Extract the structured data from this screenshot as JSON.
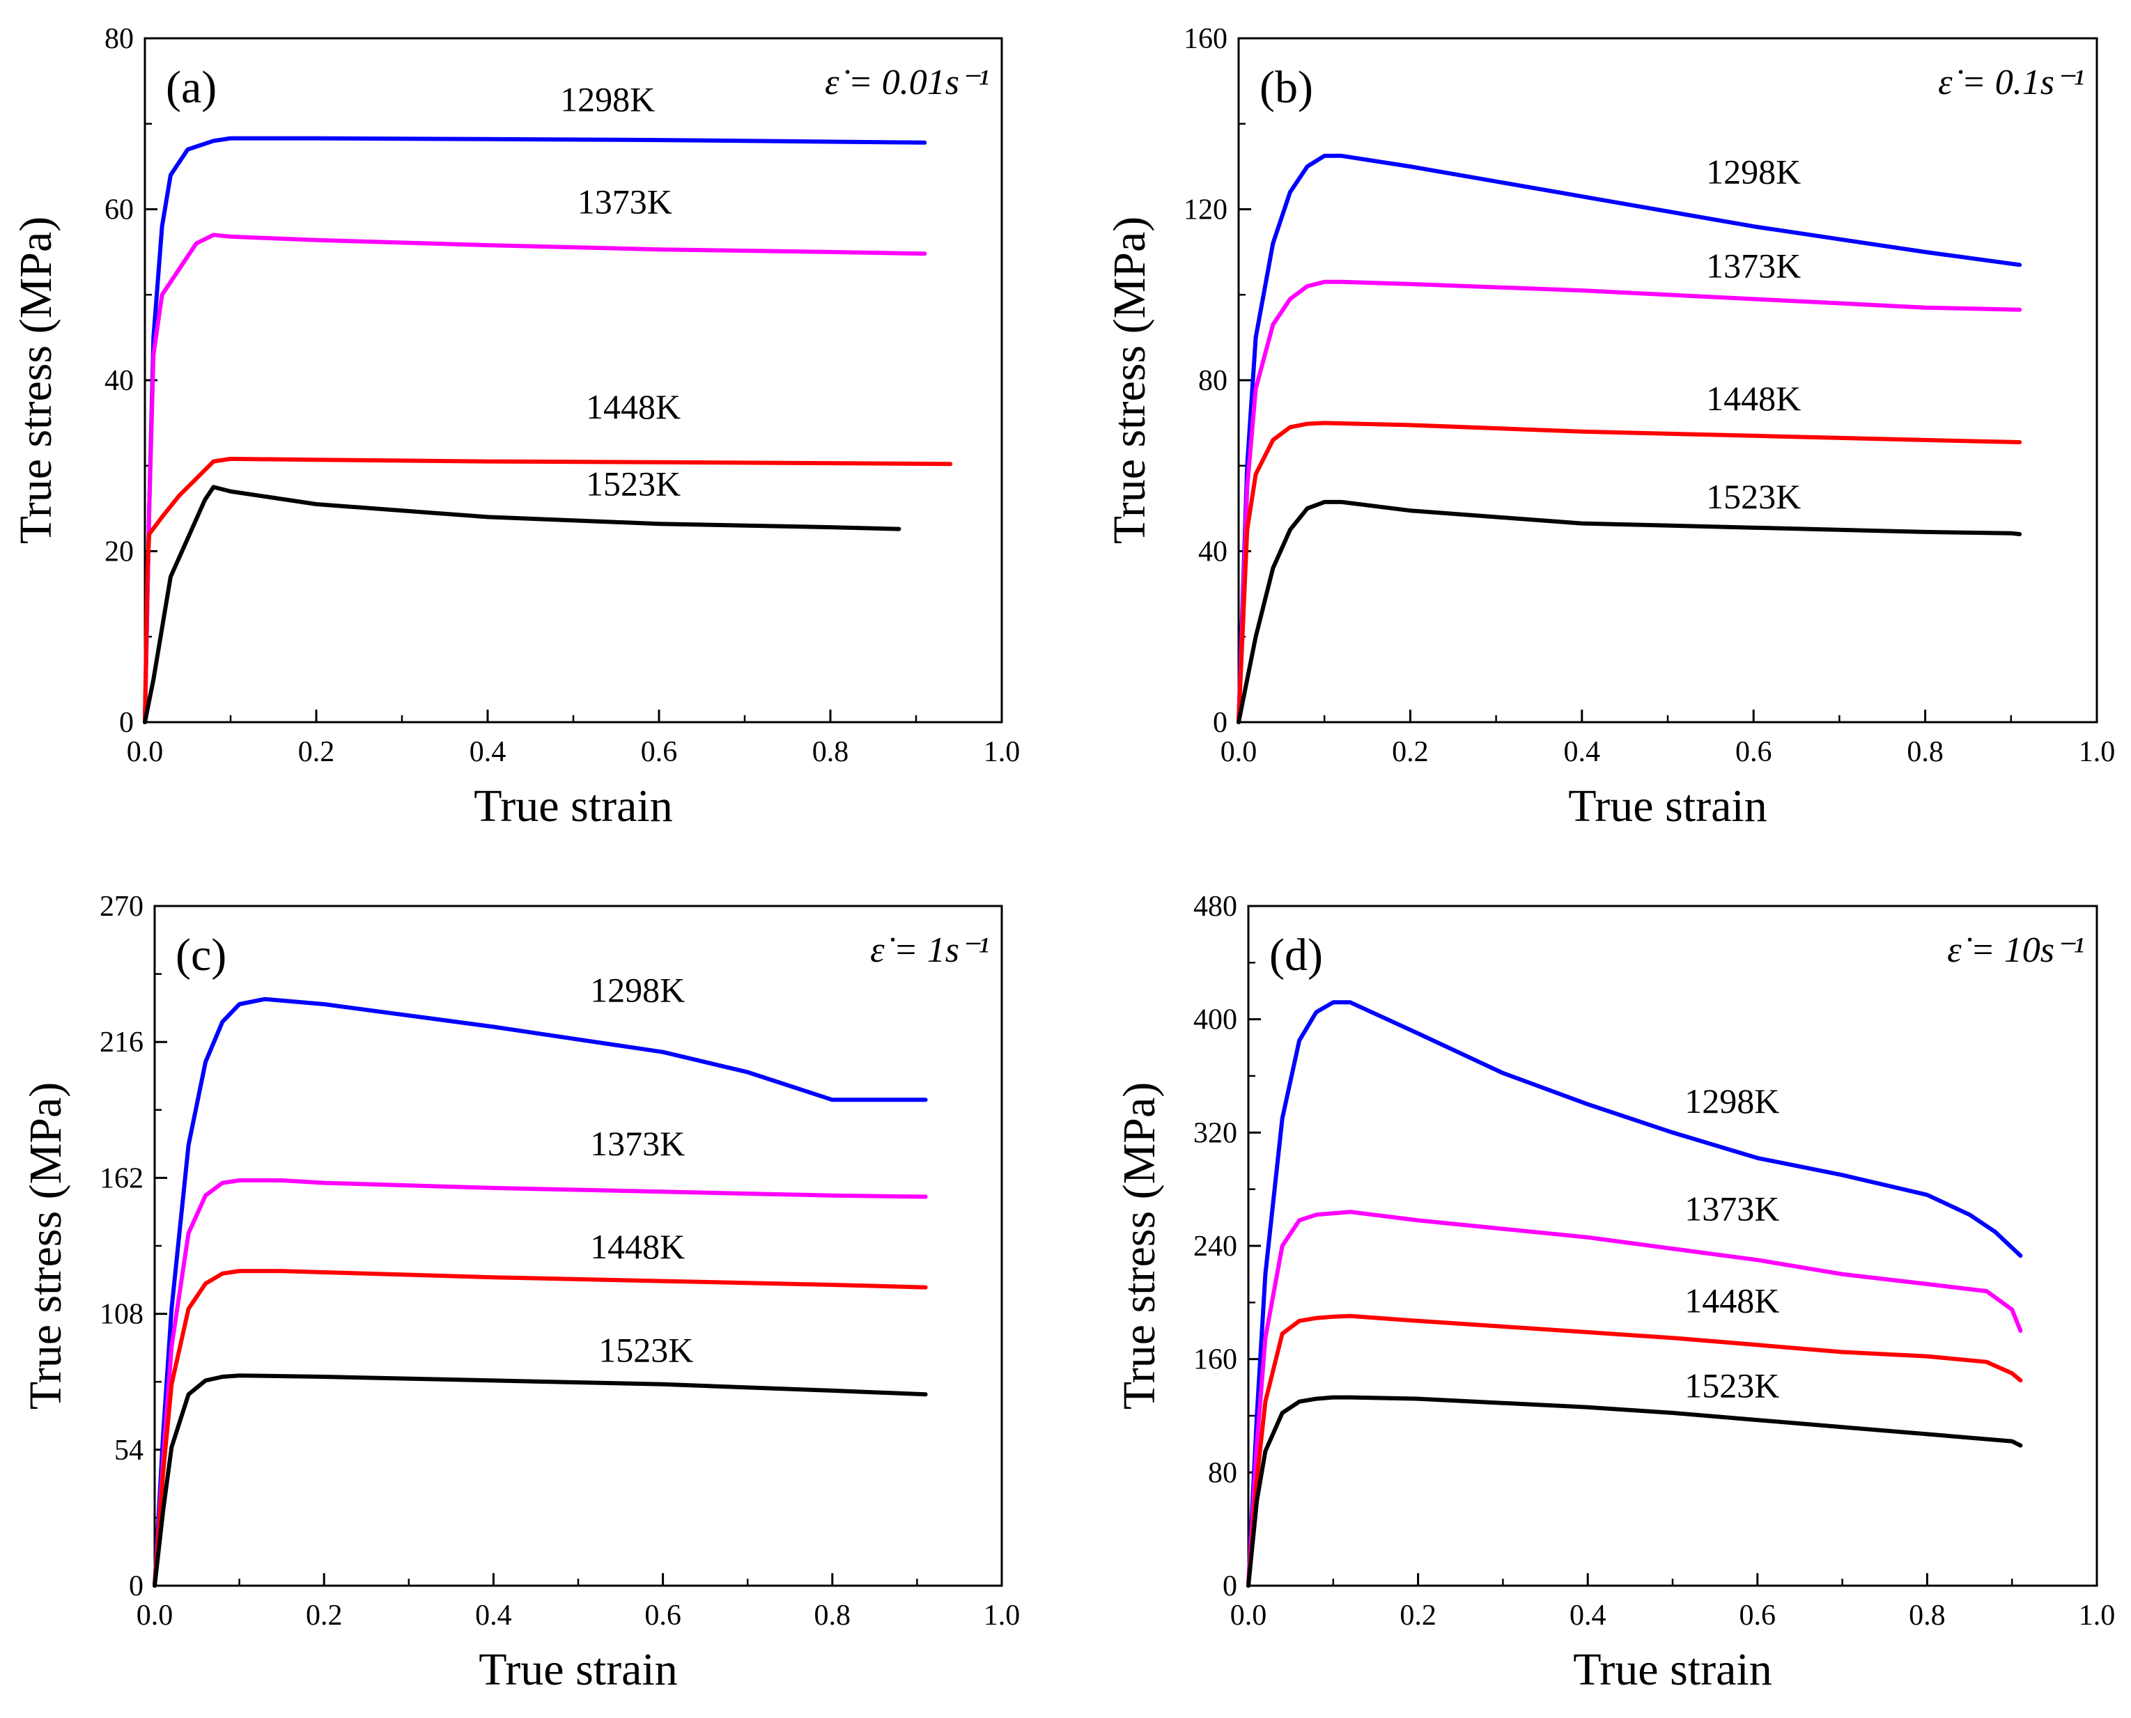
{
  "colors": {
    "1298K": "#0000ff",
    "1373K": "#ff00ff",
    "1448K": "#ff0000",
    "1523K": "#000000"
  },
  "chart_data": [
    {
      "type": "line",
      "panel_label": "(a)",
      "rate_label": "ε̇ = 0.01s⁻¹",
      "xlabel": "True strain",
      "ylabel": "True stress (MPa)",
      "xlim": [
        0,
        1.0
      ],
      "ylim": [
        0,
        80
      ],
      "xticks": [
        0.0,
        0.2,
        0.4,
        0.6,
        0.8,
        1.0
      ],
      "yticks": [
        0,
        20,
        40,
        60,
        80
      ],
      "xtick_labels": [
        "0.0",
        "0.2",
        "0.4",
        "0.6",
        "0.8",
        "1.0"
      ],
      "ytick_labels": [
        "0",
        "20",
        "40",
        "60",
        "80"
      ],
      "series": [
        {
          "name": "1298K",
          "label_at": [
            0.54,
            71.5
          ],
          "x": [
            0,
            0.005,
            0.01,
            0.02,
            0.03,
            0.05,
            0.08,
            0.1,
            0.2,
            0.4,
            0.6,
            0.8,
            0.91
          ],
          "y": [
            0,
            25,
            45,
            58,
            64,
            67,
            68,
            68.3,
            68.3,
            68.2,
            68.1,
            67.9,
            67.8
          ]
        },
        {
          "name": "1373K",
          "label_at": [
            0.56,
            59.5
          ],
          "x": [
            0,
            0.005,
            0.01,
            0.02,
            0.04,
            0.06,
            0.08,
            0.1,
            0.2,
            0.4,
            0.6,
            0.8,
            0.91
          ],
          "y": [
            0,
            25,
            43,
            50,
            53,
            56,
            57,
            56.8,
            56.4,
            55.8,
            55.3,
            55.0,
            54.8
          ]
        },
        {
          "name": "1448K",
          "label_at": [
            0.57,
            35.5
          ],
          "x": [
            0,
            0.003,
            0.005,
            0.02,
            0.04,
            0.06,
            0.08,
            0.1,
            0.2,
            0.4,
            0.6,
            0.8,
            0.94
          ],
          "y": [
            0,
            18,
            22,
            24,
            26.5,
            28.5,
            30.5,
            30.8,
            30.7,
            30.5,
            30.4,
            30.3,
            30.2
          ]
        },
        {
          "name": "1523K",
          "label_at": [
            0.57,
            26.5
          ],
          "x": [
            0,
            0.01,
            0.02,
            0.03,
            0.05,
            0.07,
            0.08,
            0.1,
            0.2,
            0.4,
            0.6,
            0.8,
            0.88
          ],
          "y": [
            0,
            5,
            11,
            17,
            21.5,
            26,
            27.5,
            27,
            25.5,
            24,
            23.2,
            22.8,
            22.6
          ]
        }
      ]
    },
    {
      "type": "line",
      "panel_label": "(b)",
      "rate_label": "ε̇ = 0.1s⁻¹",
      "xlabel": "True strain",
      "ylabel": "True stress (MPa)",
      "xlim": [
        0,
        1.0
      ],
      "ylim": [
        0,
        160
      ],
      "xticks": [
        0.0,
        0.2,
        0.4,
        0.6,
        0.8,
        1.0
      ],
      "yticks": [
        0,
        40,
        80,
        120,
        160
      ],
      "xtick_labels": [
        "0.0",
        "0.2",
        "0.4",
        "0.6",
        "0.8",
        "1.0"
      ],
      "ytick_labels": [
        "0",
        "40",
        "80",
        "120",
        "160"
      ],
      "series": [
        {
          "name": "1298K",
          "label_at": [
            0.6,
            126
          ],
          "x": [
            0,
            0.01,
            0.02,
            0.04,
            0.06,
            0.08,
            0.1,
            0.12,
            0.2,
            0.4,
            0.6,
            0.8,
            0.91
          ],
          "y": [
            0,
            60,
            90,
            112,
            124,
            130,
            132.5,
            132.5,
            130,
            123,
            116,
            110,
            107
          ]
        },
        {
          "name": "1373K",
          "label_at": [
            0.6,
            104
          ],
          "x": [
            0,
            0.01,
            0.02,
            0.04,
            0.06,
            0.08,
            0.1,
            0.12,
            0.2,
            0.4,
            0.6,
            0.8,
            0.91
          ],
          "y": [
            0,
            55,
            78,
            93,
            99,
            102,
            103,
            103,
            102.5,
            101,
            99,
            97,
            96.5
          ]
        },
        {
          "name": "1448K",
          "label_at": [
            0.6,
            73
          ],
          "x": [
            0,
            0.01,
            0.02,
            0.04,
            0.06,
            0.08,
            0.1,
            0.2,
            0.4,
            0.6,
            0.8,
            0.91
          ],
          "y": [
            0,
            45,
            58,
            66,
            69,
            69.8,
            70,
            69.5,
            68,
            67,
            66,
            65.5
          ]
        },
        {
          "name": "1523K",
          "label_at": [
            0.6,
            50
          ],
          "x": [
            0,
            0.02,
            0.04,
            0.06,
            0.08,
            0.1,
            0.12,
            0.2,
            0.4,
            0.6,
            0.8,
            0.9,
            0.91
          ],
          "y": [
            0,
            20,
            36,
            45,
            50,
            51.5,
            51.5,
            49.5,
            46.5,
            45.5,
            44.5,
            44.2,
            44
          ]
        }
      ]
    },
    {
      "type": "line",
      "panel_label": "(c)",
      "rate_label": "ε̇ = 1s⁻¹",
      "xlabel": "True strain",
      "ylabel": "True stress (MPa)",
      "xlim": [
        0,
        1.0
      ],
      "ylim": [
        0,
        270
      ],
      "xticks": [
        0.0,
        0.2,
        0.4,
        0.6,
        0.8,
        1.0
      ],
      "yticks": [
        0,
        54,
        108,
        162,
        216,
        270
      ],
      "xtick_labels": [
        "0.0",
        "0.2",
        "0.4",
        "0.6",
        "0.8",
        "1.0"
      ],
      "ytick_labels": [
        "0",
        "54",
        "108",
        "162",
        "216",
        "270"
      ],
      "series": [
        {
          "name": "1298K",
          "label_at": [
            0.57,
            232
          ],
          "x": [
            0,
            0.01,
            0.02,
            0.04,
            0.06,
            0.08,
            0.1,
            0.13,
            0.2,
            0.4,
            0.6,
            0.7,
            0.8,
            0.91
          ],
          "y": [
            0,
            60,
            110,
            175,
            208,
            224,
            231,
            233,
            231,
            222,
            212,
            204,
            193,
            193
          ]
        },
        {
          "name": "1373K",
          "label_at": [
            0.57,
            171
          ],
          "x": [
            0,
            0.01,
            0.02,
            0.04,
            0.06,
            0.08,
            0.1,
            0.15,
            0.2,
            0.4,
            0.6,
            0.8,
            0.91
          ],
          "y": [
            0,
            50,
            95,
            140,
            155,
            160,
            161,
            161,
            160,
            158,
            156.5,
            155,
            154.5
          ]
        },
        {
          "name": "1448K",
          "label_at": [
            0.57,
            130
          ],
          "x": [
            0,
            0.01,
            0.02,
            0.04,
            0.06,
            0.08,
            0.1,
            0.15,
            0.2,
            0.4,
            0.6,
            0.8,
            0.91
          ],
          "y": [
            0,
            45,
            80,
            110,
            120,
            124,
            125,
            125,
            124.5,
            122.5,
            121,
            119.5,
            118.5
          ]
        },
        {
          "name": "1523K",
          "label_at": [
            0.58,
            89
          ],
          "x": [
            0,
            0.01,
            0.02,
            0.04,
            0.06,
            0.08,
            0.1,
            0.2,
            0.4,
            0.6,
            0.8,
            0.91
          ],
          "y": [
            0,
            30,
            55,
            76,
            81.5,
            83,
            83.5,
            83,
            81.5,
            80,
            77.5,
            76
          ]
        }
      ]
    },
    {
      "type": "line",
      "panel_label": "(d)",
      "rate_label": "ε̇ = 10s⁻¹",
      "xlabel": "True strain",
      "ylabel": "True stress (MPa)",
      "xlim": [
        0,
        1.0
      ],
      "ylim": [
        0,
        480
      ],
      "xticks": [
        0.0,
        0.2,
        0.4,
        0.6,
        0.8,
        1.0
      ],
      "yticks": [
        0,
        80,
        160,
        240,
        320,
        400,
        480
      ],
      "xtick_labels": [
        "0.0",
        "0.2",
        "0.4",
        "0.6",
        "0.8",
        "1.0"
      ],
      "ytick_labels": [
        "0",
        "80",
        "160",
        "240",
        "320",
        "400",
        "480"
      ],
      "series": [
        {
          "name": "1298K",
          "label_at": [
            0.57,
            334
          ],
          "x": [
            0,
            0.01,
            0.02,
            0.04,
            0.06,
            0.08,
            0.1,
            0.12,
            0.2,
            0.3,
            0.4,
            0.5,
            0.6,
            0.7,
            0.8,
            0.85,
            0.88,
            0.91
          ],
          "y": [
            0,
            120,
            220,
            330,
            385,
            405,
            412,
            412,
            390,
            362,
            340,
            320,
            302,
            290,
            276,
            262,
            250,
            233
          ]
        },
        {
          "name": "1373K",
          "label_at": [
            0.57,
            258
          ],
          "x": [
            0,
            0.01,
            0.02,
            0.04,
            0.06,
            0.08,
            0.1,
            0.12,
            0.2,
            0.3,
            0.4,
            0.5,
            0.6,
            0.7,
            0.8,
            0.87,
            0.9,
            0.91
          ],
          "y": [
            0,
            100,
            175,
            240,
            258,
            262,
            263,
            264,
            258,
            252,
            246,
            238,
            230,
            220,
            213,
            208,
            195,
            180
          ]
        },
        {
          "name": "1448K",
          "label_at": [
            0.57,
            193
          ],
          "x": [
            0,
            0.01,
            0.02,
            0.04,
            0.06,
            0.08,
            0.1,
            0.12,
            0.2,
            0.3,
            0.4,
            0.5,
            0.6,
            0.7,
            0.8,
            0.87,
            0.9,
            0.91
          ],
          "y": [
            0,
            75,
            130,
            178,
            187,
            189,
            190,
            190.5,
            187,
            183,
            179,
            175,
            170,
            165,
            162,
            158,
            150,
            145
          ]
        },
        {
          "name": "1523K",
          "label_at": [
            0.57,
            133
          ],
          "x": [
            0,
            0.01,
            0.02,
            0.04,
            0.06,
            0.08,
            0.1,
            0.12,
            0.2,
            0.3,
            0.4,
            0.5,
            0.6,
            0.7,
            0.8,
            0.9,
            0.91
          ],
          "y": [
            0,
            60,
            95,
            122,
            130,
            132,
            133,
            133,
            132,
            129,
            126,
            122,
            117,
            112,
            107,
            102,
            99
          ]
        }
      ]
    }
  ]
}
